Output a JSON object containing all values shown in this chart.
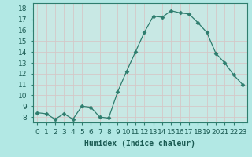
{
  "x": [
    0,
    1,
    2,
    3,
    4,
    5,
    6,
    7,
    8,
    9,
    10,
    11,
    12,
    13,
    14,
    15,
    16,
    17,
    18,
    19,
    20,
    21,
    22,
    23
  ],
  "y": [
    8.4,
    8.3,
    7.8,
    8.3,
    7.8,
    9.0,
    8.9,
    8.0,
    7.9,
    10.3,
    12.2,
    14.0,
    15.8,
    17.3,
    17.2,
    17.8,
    17.6,
    17.5,
    16.7,
    15.8,
    13.9,
    13.0,
    11.9,
    11.0
  ],
  "title": "",
  "xlabel": "Humidex (Indice chaleur)",
  "ylabel": "",
  "line_color": "#2e7d6e",
  "marker": "D",
  "marker_size": 2.5,
  "bg_color": "#b2e8e4",
  "grid_color": "#d4c8c8",
  "xlim": [
    -0.5,
    23.5
  ],
  "ylim": [
    7.5,
    18.5
  ],
  "yticks": [
    8,
    9,
    10,
    11,
    12,
    13,
    14,
    15,
    16,
    17,
    18
  ],
  "xtick_labels": [
    "0",
    "1",
    "2",
    "3",
    "4",
    "5",
    "6",
    "7",
    "8",
    "9",
    "10",
    "11",
    "12",
    "13",
    "14",
    "15",
    "16",
    "17",
    "18",
    "19",
    "20",
    "21",
    "22",
    "23"
  ],
  "xlabel_fontsize": 7,
  "tick_fontsize": 6.5,
  "axis_bg_color": "#c8e8e4"
}
